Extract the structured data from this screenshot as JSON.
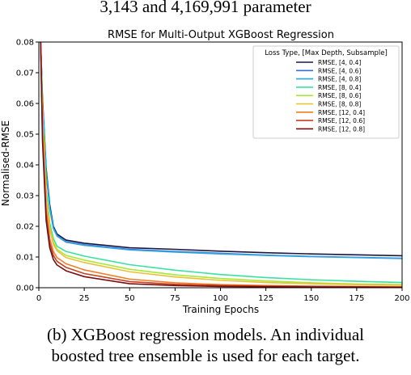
{
  "header_text": "3,143 and 4,169,991 parameter",
  "caption": {
    "line1": "(b) XGBoost regression models. An individual",
    "line2": "boosted tree ensemble is used for each target."
  },
  "chart_data": {
    "type": "line",
    "title": "RMSE for Multi-Output XGBoost Regression",
    "xlabel": "Training Epochs",
    "ylabel": "Normalised-RMSE",
    "xlim": [
      0,
      200
    ],
    "ylim": [
      0,
      0.08
    ],
    "xticks": [
      0,
      25,
      50,
      75,
      100,
      125,
      150,
      175,
      200
    ],
    "yticks": [
      0.0,
      0.01,
      0.02,
      0.03,
      0.04,
      0.05,
      0.06,
      0.07,
      0.08
    ],
    "grid": false,
    "legend": {
      "title": "Loss Type, [Max Depth, Subsample]",
      "placement": "top-right"
    },
    "x": [
      1,
      2,
      4,
      6,
      8,
      10,
      15,
      25,
      50,
      75,
      100,
      125,
      150,
      175,
      200
    ],
    "series": [
      {
        "name": "RMSE, [4, 0.4]",
        "color": "#1a1640",
        "values": [
          0.08,
          0.062,
          0.039,
          0.027,
          0.02,
          0.0175,
          0.0155,
          0.0145,
          0.013,
          0.0125,
          0.0119,
          0.0114,
          0.011,
          0.0107,
          0.0104
        ]
      },
      {
        "name": "RMSE, [4, 0.6]",
        "color": "#3a6fd8",
        "values": [
          0.08,
          0.061,
          0.038,
          0.026,
          0.0195,
          0.017,
          0.015,
          0.014,
          0.0125,
          0.0118,
          0.0112,
          0.0106,
          0.0102,
          0.0099,
          0.0096
        ]
      },
      {
        "name": "RMSE, [4, 0.8]",
        "color": "#2ea7e0",
        "values": [
          0.08,
          0.061,
          0.0375,
          0.0258,
          0.0193,
          0.0168,
          0.0148,
          0.0138,
          0.0123,
          0.0116,
          0.011,
          0.0105,
          0.0101,
          0.0098,
          0.0095
        ]
      },
      {
        "name": "RMSE, [8, 0.4]",
        "color": "#3be0a0",
        "values": [
          0.08,
          0.058,
          0.032,
          0.021,
          0.016,
          0.0135,
          0.0118,
          0.0103,
          0.0075,
          0.0057,
          0.0043,
          0.0033,
          0.0026,
          0.0021,
          0.0017
        ]
      },
      {
        "name": "RMSE, [8, 0.6]",
        "color": "#a6e83a",
        "values": [
          0.08,
          0.056,
          0.03,
          0.0195,
          0.0148,
          0.0125,
          0.0105,
          0.009,
          0.006,
          0.0042,
          0.003,
          0.0022,
          0.0016,
          0.0012,
          0.001
        ]
      },
      {
        "name": "RMSE, [8, 0.8]",
        "color": "#e8c234",
        "values": [
          0.08,
          0.055,
          0.029,
          0.0188,
          0.0142,
          0.012,
          0.0098,
          0.0082,
          0.0052,
          0.0035,
          0.0024,
          0.0017,
          0.0013,
          0.001,
          0.0008
        ]
      },
      {
        "name": "RMSE, [12, 0.4]",
        "color": "#f07d28",
        "values": [
          0.08,
          0.052,
          0.026,
          0.016,
          0.0118,
          0.0098,
          0.0078,
          0.0058,
          0.0028,
          0.0016,
          0.001,
          0.0007,
          0.0005,
          0.0004,
          0.0003
        ]
      },
      {
        "name": "RMSE, [12, 0.6]",
        "color": "#c8401c",
        "values": [
          0.08,
          0.05,
          0.024,
          0.0145,
          0.0105,
          0.0086,
          0.0066,
          0.0046,
          0.002,
          0.0011,
          0.0007,
          0.0005,
          0.0004,
          0.0003,
          0.0002
        ]
      },
      {
        "name": "RMSE, [12, 0.8]",
        "color": "#7a0d0d",
        "values": [
          0.08,
          0.048,
          0.022,
          0.013,
          0.0092,
          0.0074,
          0.0055,
          0.0036,
          0.0013,
          0.0007,
          0.0004,
          0.0003,
          0.0002,
          0.0002,
          0.0001
        ]
      }
    ]
  }
}
